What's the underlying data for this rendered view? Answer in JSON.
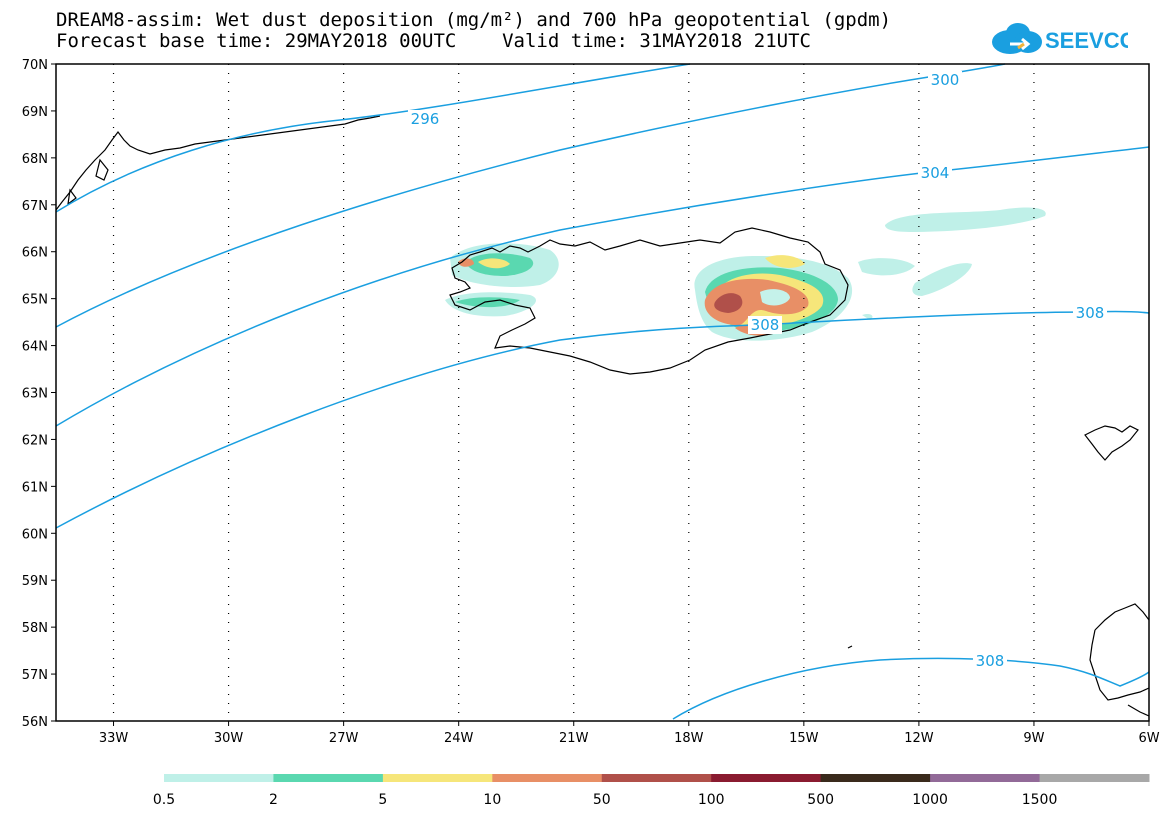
{
  "header": {
    "title": "DREAM8-assim: Wet dust deposition (mg/m²) and 700 hPa geopotential (gpdm)",
    "subtitle": "Forecast base time: 29MAY2018 00UTC    Valid time: 31MAY2018 21UTC"
  },
  "logo": {
    "text": "SEEVCCC",
    "color": "#1a9fe0"
  },
  "map": {
    "lat_labels": [
      "70N",
      "69N",
      "68N",
      "67N",
      "66N",
      "65N",
      "64N",
      "63N",
      "62N",
      "61N",
      "60N",
      "59N",
      "58N",
      "57N",
      "56N"
    ],
    "lon_labels": [
      "33W",
      "30W",
      "27W",
      "24W",
      "21W",
      "18W",
      "15W",
      "12W",
      "9W",
      "6W"
    ],
    "lat_range": [
      56,
      70
    ],
    "lon_range": [
      -34.5,
      -6
    ],
    "grid": "dotted",
    "coastline_color": "#000000",
    "contour_color": "#1a9fe0",
    "contour_labels": [
      "296",
      "300",
      "304",
      "308",
      "308",
      "308"
    ]
  },
  "legend": {
    "labels": [
      "0.5",
      "2",
      "5",
      "10",
      "50",
      "100",
      "500",
      "1000",
      "1500"
    ],
    "colors": [
      "#bff0e8",
      "#5ad8b0",
      "#f6e67a",
      "#e88f66",
      "#b0504a",
      "#8a1b30",
      "#3a2a1c",
      "#926a98",
      "#a8a8a8"
    ]
  }
}
